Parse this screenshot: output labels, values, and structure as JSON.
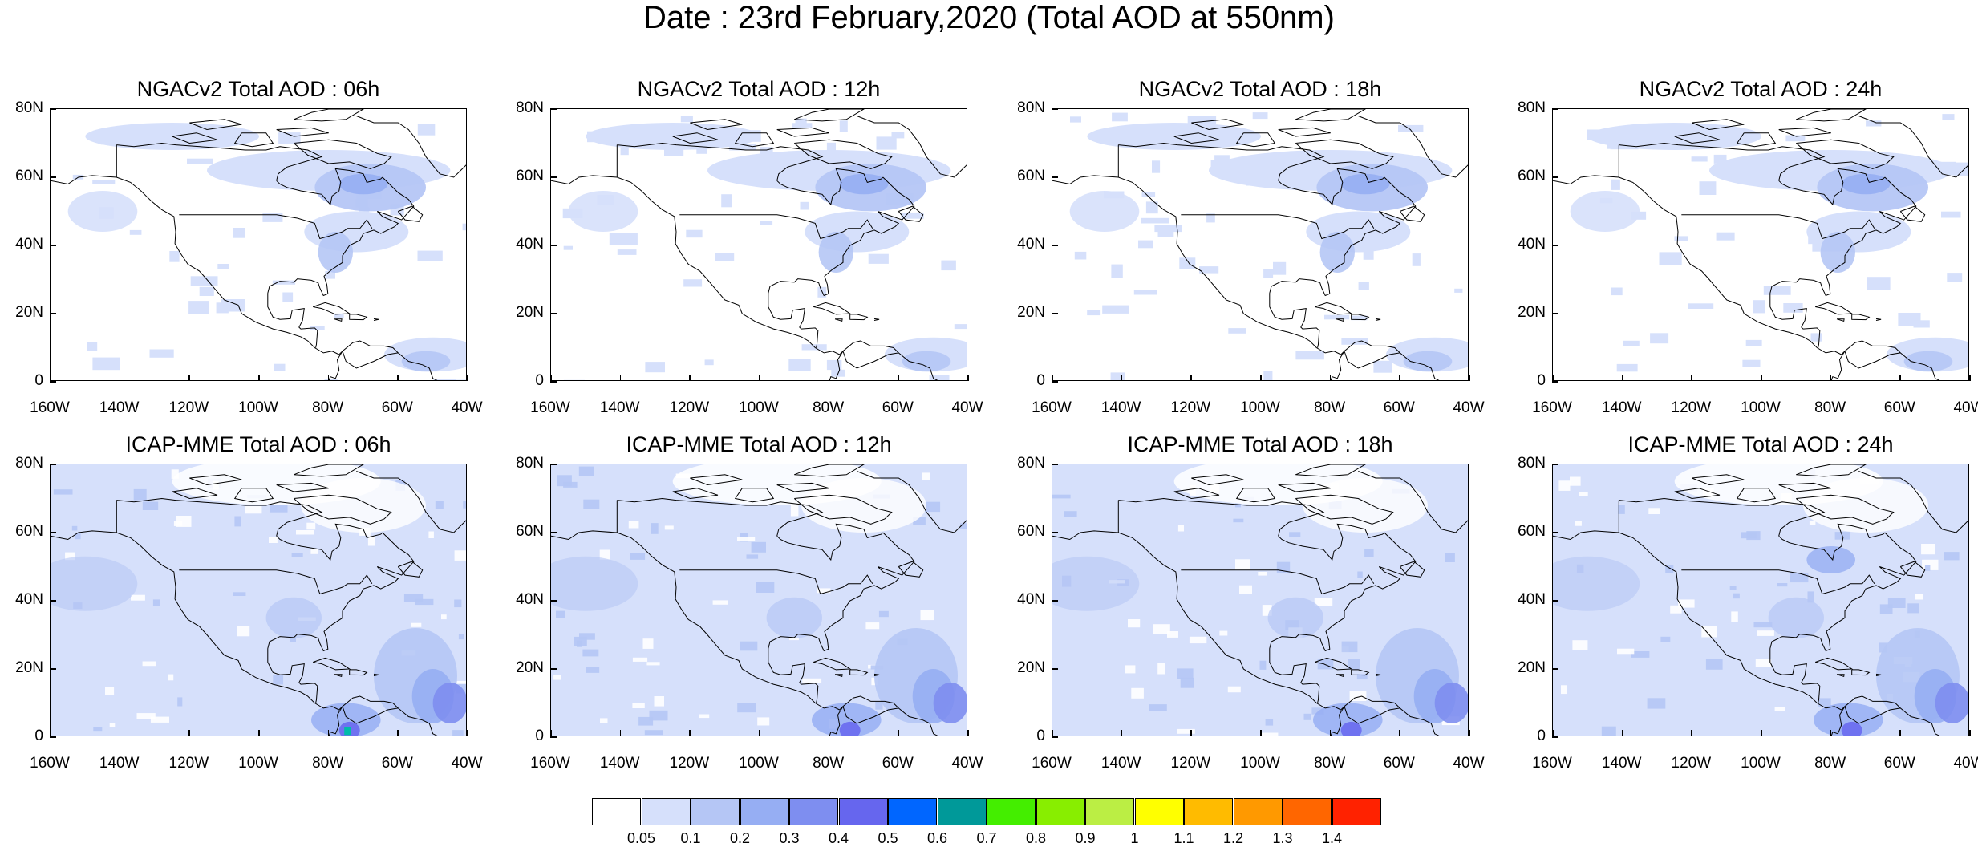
{
  "figure": {
    "title": "Date : 23rd February,2020 (Total AOD at 550nm)"
  },
  "panels": [
    {
      "title": "NGACv2 Total AOD : 06h",
      "model": "NGACv2",
      "hour": "06h"
    },
    {
      "title": "NGACv2 Total AOD : 12h",
      "model": "NGACv2",
      "hour": "12h"
    },
    {
      "title": "NGACv2 Total AOD : 18h",
      "model": "NGACv2",
      "hour": "18h"
    },
    {
      "title": "NGACv2 Total AOD : 24h",
      "model": "NGACv2",
      "hour": "24h"
    },
    {
      "title": "ICAP-MME Total AOD : 06h",
      "model": "ICAP-MME",
      "hour": "06h"
    },
    {
      "title": "ICAP-MME Total AOD : 12h",
      "model": "ICAP-MME",
      "hour": "12h"
    },
    {
      "title": "ICAP-MME Total AOD : 18h",
      "model": "ICAP-MME",
      "hour": "18h"
    },
    {
      "title": "ICAP-MME Total AOD : 24h",
      "model": "ICAP-MME",
      "hour": "24h"
    }
  ],
  "axes": {
    "y_ticks": [
      "80N",
      "60N",
      "40N",
      "20N",
      "0"
    ],
    "x_ticks": [
      "160W",
      "140W",
      "120W",
      "100W",
      "80W",
      "60W",
      "40W"
    ],
    "lon_range": [
      "160W",
      "40W"
    ],
    "lat_range": [
      "0",
      "80N"
    ]
  },
  "colorbar": {
    "levels": [
      "0.05",
      "0.1",
      "0.2",
      "0.3",
      "0.4",
      "0.5",
      "0.6",
      "0.7",
      "0.8",
      "0.9",
      "1",
      "1.1",
      "1.2",
      "1.3",
      "1.4"
    ],
    "colors": [
      "#ffffff",
      "#d6e0fb",
      "#b5c6f5",
      "#96aef3",
      "#7e8ef0",
      "#6666ee",
      "#0066ff",
      "#009999",
      "#44ee00",
      "#88ee00",
      "#bbee44",
      "#ffff00",
      "#ffbb00",
      "#ff9900",
      "#ff6600",
      "#ff2200"
    ]
  },
  "map": {
    "background_color": "#ffffff",
    "coast_color": "#000000",
    "low_color": "#d6e0fb",
    "mid_color": "#b5c6f5",
    "high_color": "#96aef3"
  }
}
